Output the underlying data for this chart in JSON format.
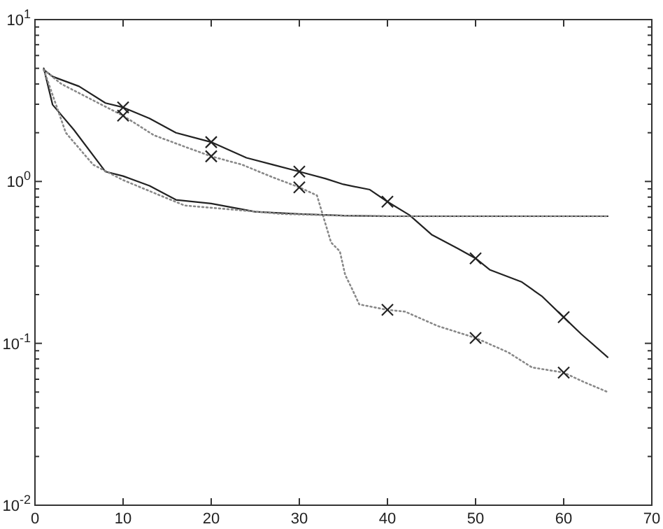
{
  "chart_data": {
    "type": "line",
    "log": "y",
    "grid": false,
    "xlim": [
      0,
      70
    ],
    "xticks": [
      0,
      10,
      20,
      30,
      40,
      50,
      60,
      70
    ],
    "ylim": [
      0.01,
      10
    ],
    "yticks": [
      {
        "value": 0.01,
        "label": "10$^{-2}$"
      },
      {
        "value": 0.02,
        "label": null
      },
      {
        "value": 0.03,
        "label": null
      },
      {
        "value": 0.04,
        "label": null
      },
      {
        "value": 0.05,
        "label": null
      },
      {
        "value": 0.06,
        "label": null
      },
      {
        "value": 0.07,
        "label": null
      },
      {
        "value": 0.08,
        "label": null
      },
      {
        "value": 0.09,
        "label": null
      },
      {
        "value": 0.1,
        "label": "10$^{-1}$"
      },
      {
        "value": 0.2,
        "label": null
      },
      {
        "value": 0.3,
        "label": null
      },
      {
        "value": 0.4,
        "label": null
      },
      {
        "value": 0.5,
        "label": null
      },
      {
        "value": 0.6,
        "label": null
      },
      {
        "value": 0.7,
        "label": null
      },
      {
        "value": 0.8,
        "label": null
      },
      {
        "value": 0.9,
        "label": null
      },
      {
        "value": 1,
        "label": "10$^{0}$"
      },
      {
        "value": 2,
        "label": null
      },
      {
        "value": 3,
        "label": null
      },
      {
        "value": 4,
        "label": null
      },
      {
        "value": 5,
        "label": null
      },
      {
        "value": 6,
        "label": null
      },
      {
        "value": 7,
        "label": null
      },
      {
        "value": 8,
        "label": null
      },
      {
        "value": 9,
        "label": null
      },
      {
        "value": 10,
        "label": "10$^{1}$"
      }
    ],
    "series": [
      {
        "color": "#222222",
        "line_style": "solid",
        "marker": "none",
        "x": [
          1,
          2,
          5,
          8,
          10,
          13,
          16,
          20,
          24,
          27,
          30,
          33,
          35,
          38,
          40,
          42.5,
          45,
          48,
          50,
          51.6,
          55.2,
          57.5,
          60,
          62,
          65
        ],
        "values": [
          4.9,
          4.45,
          3.87,
          3.05,
          2.87,
          2.45,
          2.0,
          1.75,
          1.4,
          1.27,
          1.15,
          1.04,
          0.96,
          0.89,
          0.75,
          0.62,
          0.47,
          0.385,
          0.335,
          0.285,
          0.24,
          0.196,
          0.145,
          0.114,
          0.082
        ]
      },
      {
        "color": "#888888",
        "line_style": "dotted",
        "marker": "none",
        "x": [
          1,
          3,
          6.6,
          10,
          13.5,
          17,
          20,
          23.5,
          27,
          30,
          32,
          33.6,
          34.6,
          35.2,
          36,
          36.8,
          40,
          42,
          45.7,
          50,
          53.7,
          56.4,
          60,
          62.2,
          65
        ],
        "values": [
          4.9,
          4.0,
          3.17,
          2.55,
          1.93,
          1.64,
          1.43,
          1.27,
          1.06,
          0.92,
          0.82,
          0.42,
          0.37,
          0.265,
          0.216,
          0.174,
          0.161,
          0.157,
          0.128,
          0.108,
          0.088,
          0.071,
          0.066,
          0.058,
          0.05
        ]
      },
      {
        "color": "#222222",
        "line_style": "solid",
        "marker": "none",
        "x": [
          1,
          2,
          4.4,
          8,
          10,
          13,
          16,
          20,
          25,
          30,
          35,
          40,
          50,
          65
        ],
        "values": [
          5.0,
          2.98,
          2.09,
          1.15,
          1.08,
          0.94,
          0.77,
          0.73,
          0.65,
          0.63,
          0.615,
          0.61,
          0.61,
          0.61
        ]
      },
      {
        "color": "#888888",
        "line_style": "dotted",
        "marker": "none",
        "x": [
          1,
          3.5,
          6.6,
          10,
          13.5,
          17,
          22.5,
          28,
          35,
          40,
          50,
          65
        ],
        "values": [
          4.9,
          2.0,
          1.27,
          1.02,
          0.85,
          0.71,
          0.67,
          0.63,
          0.615,
          0.61,
          0.61,
          0.61
        ]
      },
      {
        "type": "scatter",
        "color": "#222222",
        "marker": "cross",
        "x": [
          10,
          20,
          30,
          40,
          50,
          60
        ],
        "values": [
          2.87,
          1.75,
          1.15,
          0.75,
          0.335,
          0.145
        ]
      },
      {
        "type": "scatter",
        "color": "#222222",
        "marker": "cross",
        "x": [
          10,
          20,
          30,
          40,
          50,
          60
        ],
        "values": [
          2.55,
          1.43,
          0.92,
          0.161,
          0.108,
          0.066
        ]
      }
    ]
  }
}
